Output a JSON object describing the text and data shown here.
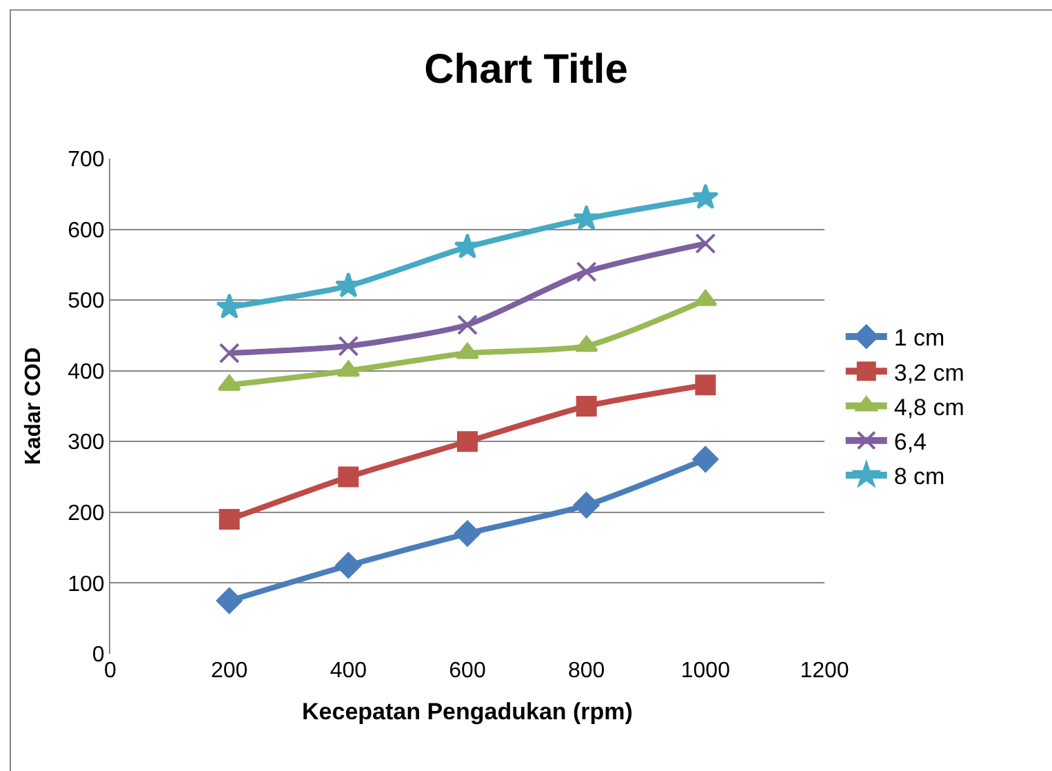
{
  "chart_data": {
    "type": "line",
    "title": "Chart Title",
    "xlabel": "Kecepatan Pengadukan (rpm)",
    "ylabel": "Kadar COD",
    "x": [
      200,
      400,
      600,
      800,
      1000
    ],
    "series": [
      {
        "name": "1 cm",
        "color": "#4a7ebb",
        "marker": "diamond",
        "values": [
          75,
          125,
          170,
          210,
          275
        ]
      },
      {
        "name": "3,2 cm",
        "color": "#be4b48",
        "marker": "square",
        "values": [
          190,
          250,
          300,
          350,
          380
        ]
      },
      {
        "name": "4,8 cm",
        "color": "#98b954",
        "marker": "triangle",
        "values": [
          380,
          400,
          425,
          435,
          500
        ]
      },
      {
        "name": "6,4",
        "color": "#7d60a0",
        "marker": "cross",
        "values": [
          425,
          435,
          465,
          540,
          580
        ]
      },
      {
        "name": "8 cm",
        "color": "#46aac5",
        "marker": "star",
        "values": [
          490,
          520,
          575,
          615,
          645
        ]
      }
    ],
    "xlim": [
      0,
      1200
    ],
    "xticks": [
      0,
      200,
      400,
      600,
      800,
      1000,
      1200
    ],
    "ylim": [
      0,
      700
    ],
    "yticks": [
      0,
      100,
      200,
      300,
      400,
      500,
      600,
      700
    ],
    "grid": "y",
    "legend": "right",
    "line_style": "solid"
  }
}
